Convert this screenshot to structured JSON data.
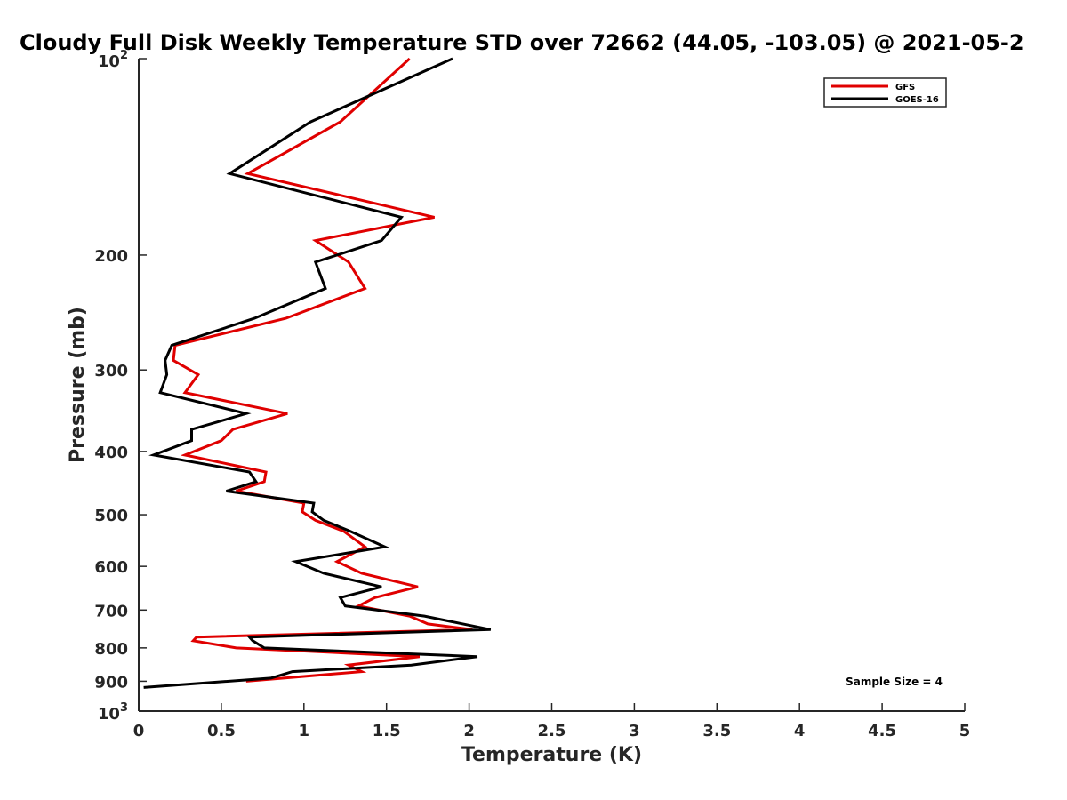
{
  "chart_data": {
    "type": "line",
    "title": "Cloudy Full Disk Weekly Temperature STD over 72662 (44.05, -103.05) @ 2021-05-2",
    "xlabel": "Temperature (K)",
    "ylabel": "Pressure (mb)",
    "xlim": [
      0,
      5
    ],
    "ylim": [
      100,
      1000
    ],
    "y_scale": "log",
    "y_reversed": true,
    "grid": false,
    "legend_position": "top-right",
    "x_ticks": [
      {
        "value": 0,
        "label": "0"
      },
      {
        "value": 0.5,
        "label": "0.5"
      },
      {
        "value": 1,
        "label": "1"
      },
      {
        "value": 1.5,
        "label": "1.5"
      },
      {
        "value": 2,
        "label": "2"
      },
      {
        "value": 2.5,
        "label": "2.5"
      },
      {
        "value": 3,
        "label": "3"
      },
      {
        "value": 3.5,
        "label": "3.5"
      },
      {
        "value": 4,
        "label": "4"
      },
      {
        "value": 4.5,
        "label": "4.5"
      },
      {
        "value": 5,
        "label": "5"
      }
    ],
    "y_ticks": [
      {
        "value": 100,
        "base": "10",
        "exp": "2"
      },
      {
        "value": 200,
        "label": "200"
      },
      {
        "value": 300,
        "label": "300"
      },
      {
        "value": 400,
        "label": "400"
      },
      {
        "value": 500,
        "label": "500"
      },
      {
        "value": 600,
        "label": "600"
      },
      {
        "value": 700,
        "label": "700"
      },
      {
        "value": 800,
        "label": "800"
      },
      {
        "value": 900,
        "label": "900"
      },
      {
        "value": 1000,
        "base": "10",
        "exp": "3"
      }
    ],
    "series": [
      {
        "name": "GFS",
        "color": "#e00000",
        "points": [
          [
            1.64,
            100
          ],
          [
            1.22,
            125
          ],
          [
            0.66,
            150
          ],
          [
            1.79,
            175
          ],
          [
            1.07,
            190
          ],
          [
            1.27,
            205
          ],
          [
            1.37,
            225
          ],
          [
            0.89,
            250
          ],
          [
            0.22,
            275
          ],
          [
            0.21,
            290
          ],
          [
            0.36,
            305
          ],
          [
            0.28,
            325
          ],
          [
            0.9,
            350
          ],
          [
            0.57,
            370
          ],
          [
            0.5,
            385
          ],
          [
            0.28,
            405
          ],
          [
            0.77,
            430
          ],
          [
            0.76,
            445
          ],
          [
            0.59,
            460
          ],
          [
            1.0,
            480
          ],
          [
            0.99,
            495
          ],
          [
            1.07,
            510
          ],
          [
            1.24,
            530
          ],
          [
            1.37,
            560
          ],
          [
            1.2,
            590
          ],
          [
            1.35,
            615
          ],
          [
            1.69,
            645
          ],
          [
            1.43,
            670
          ],
          [
            1.33,
            690
          ],
          [
            1.64,
            715
          ],
          [
            1.75,
            735
          ],
          [
            2.02,
            750
          ],
          [
            0.35,
            770
          ],
          [
            0.33,
            780
          ],
          [
            0.59,
            800
          ],
          [
            1.7,
            825
          ],
          [
            1.27,
            850
          ],
          [
            1.35,
            870
          ],
          [
            0.65,
            900
          ]
        ]
      },
      {
        "name": "GOES-16",
        "color": "#000000",
        "points": [
          [
            1.9,
            100
          ],
          [
            1.04,
            125
          ],
          [
            0.55,
            150
          ],
          [
            1.59,
            175
          ],
          [
            1.47,
            190
          ],
          [
            1.07,
            205
          ],
          [
            1.13,
            225
          ],
          [
            0.7,
            250
          ],
          [
            0.2,
            275
          ],
          [
            0.16,
            290
          ],
          [
            0.17,
            305
          ],
          [
            0.13,
            325
          ],
          [
            0.65,
            350
          ],
          [
            0.32,
            370
          ],
          [
            0.32,
            385
          ],
          [
            0.09,
            405
          ],
          [
            0.67,
            430
          ],
          [
            0.71,
            445
          ],
          [
            0.53,
            460
          ],
          [
            1.06,
            480
          ],
          [
            1.05,
            495
          ],
          [
            1.12,
            510
          ],
          [
            1.28,
            530
          ],
          [
            1.49,
            560
          ],
          [
            0.95,
            590
          ],
          [
            1.12,
            615
          ],
          [
            1.47,
            645
          ],
          [
            1.22,
            670
          ],
          [
            1.25,
            690
          ],
          [
            1.73,
            715
          ],
          [
            2.13,
            750
          ],
          [
            0.67,
            770
          ],
          [
            0.69,
            780
          ],
          [
            0.76,
            800
          ],
          [
            2.05,
            825
          ],
          [
            1.65,
            850
          ],
          [
            0.93,
            870
          ],
          [
            0.8,
            890
          ],
          [
            0.03,
            920
          ]
        ]
      }
    ],
    "legend": [
      {
        "label": "GFS",
        "color": "#e00000"
      },
      {
        "label": "GOES-16",
        "color": "#000000"
      }
    ],
    "annotation": "Sample Size = 4"
  }
}
